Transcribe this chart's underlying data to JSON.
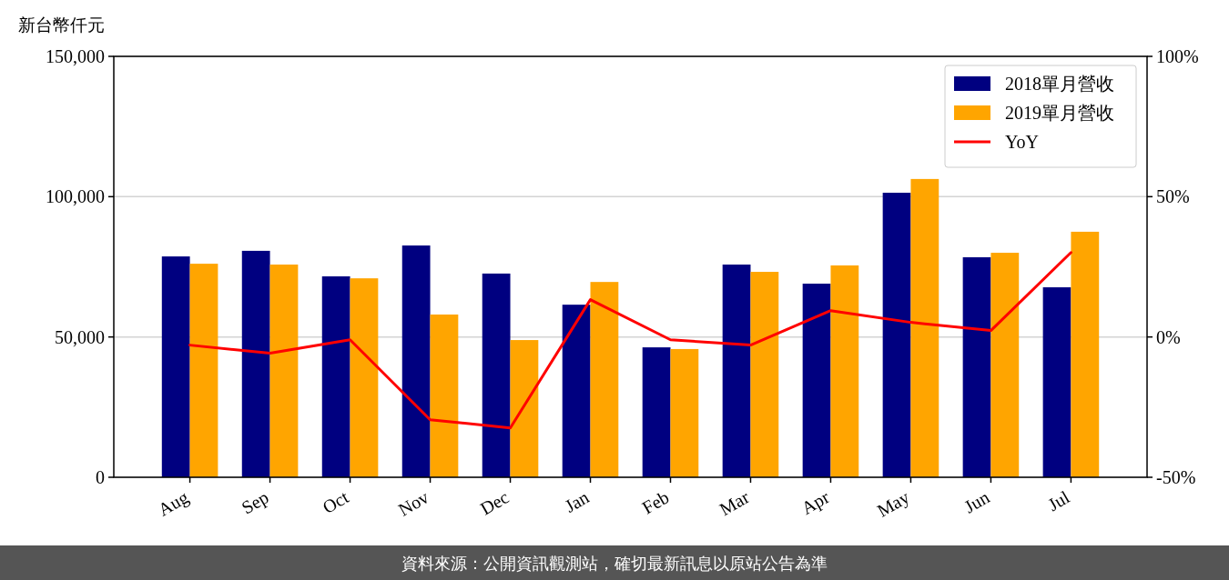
{
  "chart_data": {
    "type": "bar",
    "ylabel": "新台幣仟元",
    "categories": [
      "Aug",
      "Sep",
      "Oct",
      "Nov",
      "Dec",
      "Jan",
      "Feb",
      "Mar",
      "Apr",
      "May",
      "Jun",
      "Jul"
    ],
    "series": [
      {
        "name": "2018單月營收",
        "color": "#000080",
        "values": [
          78700,
          80700,
          71600,
          82600,
          72600,
          61500,
          46300,
          75800,
          69000,
          101400,
          78400,
          67700
        ]
      },
      {
        "name": "2019單月營收",
        "color": "#ffa500",
        "values": [
          76100,
          75800,
          70900,
          58000,
          48900,
          69600,
          45700,
          73200,
          75500,
          106300,
          80000,
          87500
        ]
      },
      {
        "name": "YoY",
        "type": "line",
        "axis": "y2",
        "color": "#ff0000",
        "values": [
          -2.9,
          -5.8,
          -1.0,
          -29.5,
          -32.4,
          13.3,
          -1.0,
          -2.9,
          9.4,
          5.2,
          2.3,
          30.1
        ]
      }
    ],
    "ylim": [
      0,
      150000
    ],
    "yticks": [
      {
        "value": 0,
        "label": "0"
      },
      {
        "value": 50000,
        "label": "50,000"
      },
      {
        "value": 100000,
        "label": "100,000"
      },
      {
        "value": 150000,
        "label": "150,000"
      }
    ],
    "y2lim": [
      -50,
      100
    ],
    "y2ticks": [
      {
        "value": -50,
        "label": "-50%"
      },
      {
        "value": 0,
        "label": "0%"
      },
      {
        "value": 50,
        "label": "50%"
      },
      {
        "value": 100,
        "label": "100%"
      }
    ],
    "grid": "y",
    "legend": "top right",
    "annotations": [
      "資料來源：公開資訊觀測站，確切最新訊息以原站公告為準"
    ]
  }
}
